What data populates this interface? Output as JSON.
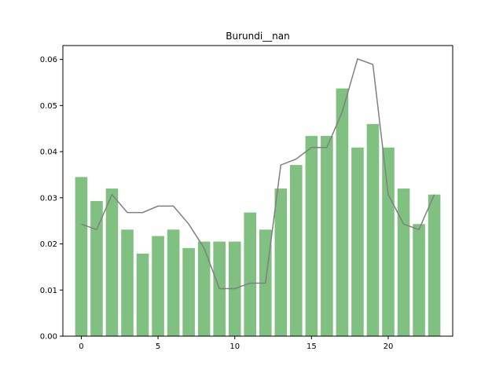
{
  "chart_data": {
    "type": "bar",
    "title": "Burundi__nan",
    "xlabel": "",
    "ylabel": "",
    "x": [
      0,
      1,
      2,
      3,
      4,
      5,
      6,
      7,
      8,
      9,
      10,
      11,
      12,
      13,
      14,
      15,
      16,
      17,
      18,
      19,
      20,
      21,
      22,
      23
    ],
    "series": [
      {
        "type": "bar",
        "color": "#80c080",
        "values": [
          0.0345,
          0.0293,
          0.032,
          0.0231,
          0.0179,
          0.0217,
          0.0231,
          0.0191,
          0.0205,
          0.0205,
          0.0205,
          0.0268,
          0.0231,
          0.032,
          0.0371,
          0.0434,
          0.0434,
          0.0537,
          0.0409,
          0.046,
          0.0409,
          0.032,
          0.0243,
          0.0307
        ]
      },
      {
        "type": "line",
        "color": "#808080",
        "values": [
          0.0243,
          0.0231,
          0.0307,
          0.0268,
          0.0268,
          0.0282,
          0.0282,
          0.0243,
          0.0191,
          0.0103,
          0.0103,
          0.0115,
          0.0115,
          0.0371,
          0.0384,
          0.0409,
          0.0409,
          0.0486,
          0.0601,
          0.0589,
          0.0307,
          0.0243,
          0.0231,
          0.0307
        ]
      }
    ],
    "xlim": [
      -1.2,
      24.2
    ],
    "ylim": [
      0,
      0.063
    ],
    "xticks": [
      0,
      5,
      10,
      15,
      20
    ],
    "yticks": [
      "0.00",
      "0.01",
      "0.02",
      "0.03",
      "0.04",
      "0.05",
      "0.06"
    ],
    "grid": false
  }
}
